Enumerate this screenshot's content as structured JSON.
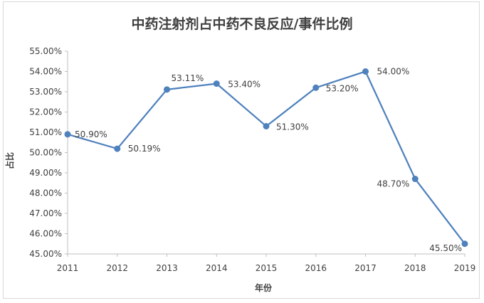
{
  "chart_data": {
    "type": "line",
    "title": "中药注射剂占中药不良反应/事件比例",
    "xlabel": "年份",
    "ylabel": "占比",
    "categories": [
      "2011",
      "2012",
      "2013",
      "2014",
      "2015",
      "2016",
      "2017",
      "2018",
      "2019"
    ],
    "series": [
      {
        "values": [
          50.9,
          50.19,
          53.11,
          53.4,
          51.3,
          53.2,
          54.0,
          48.7,
          45.5
        ],
        "labels": [
          "50.90%",
          "50.19%",
          "53.11%",
          "53.40%",
          "51.30%",
          "53.20%",
          "54.00%",
          "48.70%",
          "45.50%"
        ],
        "color": "#4f81bd"
      }
    ],
    "ylim": [
      45,
      55
    ],
    "yticks": [
      "45.00%",
      "46.00%",
      "47.00%",
      "48.00%",
      "49.00%",
      "50.00%",
      "51.00%",
      "52.00%",
      "53.00%",
      "54.00%",
      "55.00%"
    ],
    "grid": false,
    "legend": "none"
  }
}
